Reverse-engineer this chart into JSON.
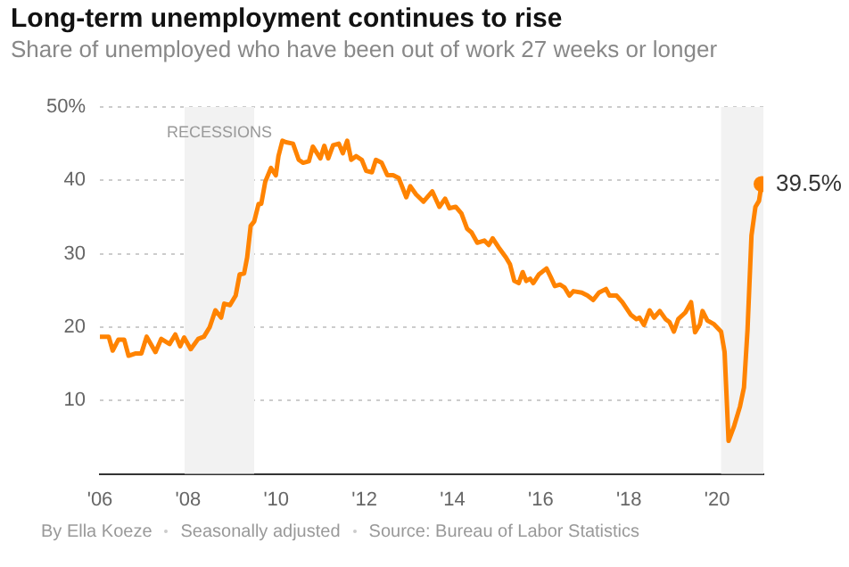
{
  "chart_data": {
    "type": "line",
    "title": "Long-term unemployment continues to rise",
    "subtitle": "Share of unemployed who have been out of work 27 weeks or longer",
    "annotations": [
      "By Ella Koeze",
      "Seasonally adjusted",
      "Source: Bureau of Labor Statistics"
    ],
    "x": [
      2006.0,
      2006.2,
      2006.29,
      2006.42,
      2006.55,
      2006.65,
      2006.8,
      2006.94,
      2007.06,
      2007.26,
      2007.39,
      2007.58,
      2007.71,
      2007.82,
      2007.91,
      2008.06,
      2008.23,
      2008.36,
      2008.49,
      2008.62,
      2008.75,
      2008.82,
      2008.95,
      2009.08,
      2009.17,
      2009.27,
      2009.34,
      2009.42,
      2009.5,
      2009.6,
      2009.66,
      2009.75,
      2009.88,
      2009.99,
      2010.05,
      2010.14,
      2010.22,
      2010.38,
      2010.51,
      2010.61,
      2010.74,
      2010.83,
      2011.0,
      2011.09,
      2011.18,
      2011.29,
      2011.42,
      2011.51,
      2011.61,
      2011.7,
      2011.81,
      2011.94,
      2012.04,
      2012.17,
      2012.26,
      2012.39,
      2012.52,
      2012.65,
      2012.78,
      2012.95,
      2013.04,
      2013.17,
      2013.34,
      2013.54,
      2013.7,
      2013.83,
      2013.93,
      2014.07,
      2014.2,
      2014.33,
      2014.43,
      2014.56,
      2014.72,
      2014.82,
      2014.91,
      2015.04,
      2015.21,
      2015.3,
      2015.4,
      2015.5,
      2015.59,
      2015.67,
      2015.76,
      2015.83,
      2015.96,
      2016.13,
      2016.22,
      2016.32,
      2016.44,
      2016.54,
      2016.65,
      2016.74,
      2016.93,
      2017.06,
      2017.19,
      2017.32,
      2017.48,
      2017.56,
      2017.72,
      2017.85,
      2018.04,
      2018.17,
      2018.24,
      2018.34,
      2018.47,
      2018.57,
      2018.7,
      2018.83,
      2018.92,
      2019.02,
      2019.12,
      2019.28,
      2019.41,
      2019.5,
      2019.61,
      2019.67,
      2019.78,
      2019.93,
      2020.09,
      2020.17,
      2020.26,
      2020.39,
      2020.52,
      2020.61,
      2020.69,
      2020.78,
      2020.87,
      2020.95,
      2021.01
    ],
    "series": [
      {
        "color": "#ff8300",
        "values": [
          18.7,
          18.7,
          16.8,
          18.3,
          18.3,
          16.1,
          16.4,
          16.4,
          18.7,
          16.6,
          18.4,
          17.7,
          19.0,
          17.4,
          18.6,
          17.0,
          18.4,
          18.7,
          20.0,
          22.3,
          21.3,
          23.2,
          23.0,
          24.3,
          27.2,
          27.3,
          29.5,
          33.8,
          34.4,
          36.8,
          36.8,
          39.8,
          41.7,
          40.7,
          43.3,
          45.4,
          45.2,
          45.0,
          42.8,
          42.4,
          42.6,
          44.6,
          43.0,
          44.7,
          43.0,
          44.8,
          45.0,
          43.7,
          45.4,
          42.8,
          43.3,
          42.8,
          41.3,
          41.1,
          42.8,
          42.4,
          40.7,
          40.7,
          40.3,
          37.7,
          39.2,
          38.1,
          37.1,
          38.5,
          36.4,
          37.5,
          36.2,
          36.4,
          35.5,
          33.4,
          32.9,
          31.5,
          31.8,
          31.2,
          32.1,
          30.9,
          29.5,
          28.6,
          26.3,
          26.0,
          27.5,
          26.3,
          26.6,
          26.0,
          27.2,
          28.0,
          26.9,
          25.6,
          25.8,
          25.4,
          24.3,
          24.9,
          24.7,
          24.3,
          23.7,
          24.7,
          25.2,
          24.3,
          24.3,
          23.4,
          21.7,
          21.1,
          21.3,
          20.3,
          22.3,
          21.3,
          22.2,
          21.1,
          20.7,
          19.4,
          21.1,
          22.0,
          23.4,
          19.3,
          20.4,
          22.2,
          20.9,
          20.4,
          19.4,
          16.6,
          4.5,
          6.6,
          9.2,
          11.8,
          19.6,
          32.5,
          36.4,
          37.2,
          39.5
        ],
        "value_labels": [
          null,
          null,
          null,
          null,
          null,
          null,
          null,
          null,
          null,
          null,
          null,
          null,
          null,
          null,
          null,
          null,
          null,
          null,
          null,
          null,
          null,
          null,
          null,
          null,
          null,
          null,
          null,
          null,
          null,
          null,
          null,
          null,
          null,
          null,
          null,
          null,
          null,
          null,
          null,
          null,
          null,
          null,
          null,
          null,
          null,
          null,
          null,
          null,
          null,
          null,
          null,
          null,
          null,
          null,
          null,
          null,
          null,
          null,
          null,
          null,
          null,
          null,
          null,
          null,
          null,
          null,
          null,
          null,
          null,
          null,
          null,
          null,
          null,
          null,
          null,
          null,
          null,
          null,
          null,
          null,
          null,
          null,
          null,
          null,
          null,
          null,
          null,
          null,
          null,
          null,
          null,
          null,
          null,
          null,
          null,
          null,
          null,
          null,
          null,
          null,
          null,
          null,
          null,
          null,
          null,
          null,
          null,
          null,
          null,
          null,
          null,
          null,
          null,
          null,
          null,
          null,
          null,
          null,
          null,
          null,
          null,
          null,
          null,
          null,
          null,
          null,
          null,
          null,
          "39.5%"
        ]
      }
    ],
    "xlim": [
      2006,
      2021.05
    ],
    "xticks": [
      {
        "value": 2006,
        "label": "'06"
      },
      {
        "value": 2008,
        "label": "'08"
      },
      {
        "value": 2010,
        "label": "'10"
      },
      {
        "value": 2012,
        "label": "'12"
      },
      {
        "value": 2014,
        "label": "'14"
      },
      {
        "value": 2016,
        "label": "'16"
      },
      {
        "value": 2018,
        "label": "'18"
      },
      {
        "value": 2020,
        "label": "'20"
      }
    ],
    "ylim": [
      0,
      50
    ],
    "yticks": [
      10,
      20,
      30,
      40,
      {
        "value": 50,
        "label": "50%"
      }
    ],
    "grid": "y",
    "bands": [
      {
        "axis": "x",
        "from": 2007.92,
        "to": 2009.5,
        "label": "RECESSIONS",
        "color": "#f2f2f2"
      },
      {
        "axis": "x",
        "from": 2020.09,
        "to": 2021.05,
        "color": "#f2f2f2"
      }
    ]
  }
}
